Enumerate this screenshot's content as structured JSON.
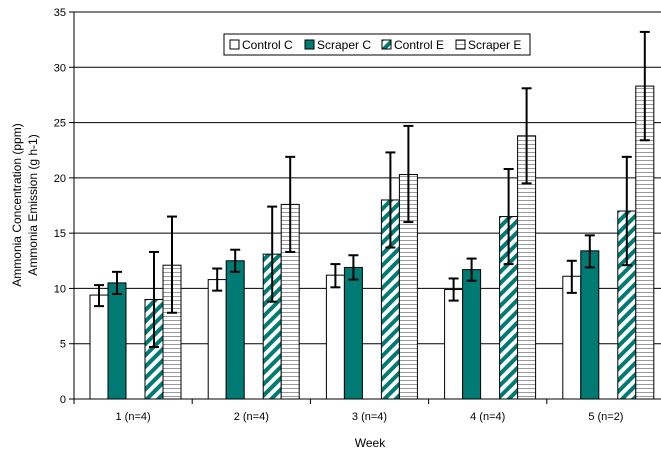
{
  "chart_data": {
    "type": "bar",
    "title": "",
    "xlabel": "Week",
    "ylabel": [
      "Ammonia Concentration (ppm)",
      "Ammonia Emission (g h-1)"
    ],
    "ylim": [
      0,
      35
    ],
    "yticks": [
      0,
      5,
      10,
      15,
      20,
      25,
      30,
      35
    ],
    "grid": true,
    "legend_position": "top",
    "categories": [
      "1 (n=4)",
      "2 (n=4)",
      "3 (n=4)",
      "4 (n=4)",
      "5 (n=2)"
    ],
    "series": [
      {
        "name": "Control C",
        "pattern": "white",
        "color": "#ffffff",
        "values": [
          9.4,
          10.8,
          11.2,
          9.9,
          11.1
        ],
        "err_low": [
          8.4,
          9.8,
          10.1,
          8.9,
          9.6
        ],
        "err_high": [
          10.3,
          11.8,
          12.2,
          10.9,
          12.5
        ]
      },
      {
        "name": "Scraper C",
        "pattern": "solid",
        "color": "#007b73",
        "values": [
          10.5,
          12.5,
          11.9,
          11.7,
          13.4
        ],
        "err_low": [
          9.5,
          11.5,
          10.8,
          10.7,
          11.9
        ],
        "err_high": [
          11.5,
          13.5,
          13.0,
          12.7,
          14.8
        ]
      },
      {
        "name": "Control E",
        "pattern": "diagonal",
        "color": "#007b73",
        "values": [
          9.0,
          13.1,
          18.0,
          16.5,
          17.0
        ],
        "err_low": [
          4.7,
          8.8,
          13.7,
          12.2,
          12.1
        ],
        "err_high": [
          13.3,
          17.4,
          22.3,
          20.8,
          21.9
        ]
      },
      {
        "name": "Scraper E",
        "pattern": "horizontal",
        "color": "#9a9a9a",
        "values": [
          12.1,
          17.6,
          20.3,
          23.8,
          28.3
        ],
        "err_low": [
          7.8,
          13.3,
          16.0,
          19.5,
          23.4
        ],
        "err_high": [
          16.5,
          21.9,
          24.7,
          28.1,
          33.2
        ]
      }
    ]
  }
}
